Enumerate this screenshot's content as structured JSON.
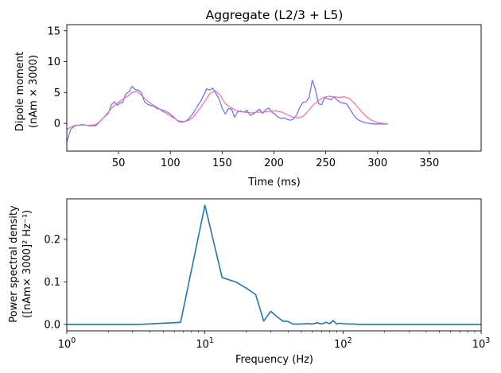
{
  "chart_data": [
    {
      "type": "line",
      "title": "Aggregate (L2/3 + L5)",
      "xlabel": "Time (ms)",
      "ylabel_line1": "Dipole moment",
      "ylabel_line2": "(nAm × 3000)",
      "xlim": [
        0,
        400
      ],
      "ylim": [
        -4.5,
        16
      ],
      "xticks": [
        50,
        100,
        150,
        200,
        250,
        300,
        350
      ],
      "yticks": [
        0,
        5,
        10,
        15
      ],
      "grid": false,
      "series": [
        {
          "color": "#6b6bf5",
          "x": [
            0,
            4,
            8,
            15,
            22,
            28,
            33,
            36,
            40,
            43,
            46,
            49,
            51,
            54,
            57,
            60,
            63,
            66,
            69,
            72,
            75,
            78,
            81,
            84,
            87,
            90,
            93,
            96,
            99,
            102,
            105,
            108,
            111,
            114,
            117,
            120,
            123,
            126,
            129,
            132,
            135,
            138,
            141,
            144,
            147,
            150,
            153,
            156,
            159,
            162,
            165,
            168,
            171,
            174,
            177,
            180,
            183,
            186,
            189,
            192,
            195,
            198,
            201,
            204,
            207,
            210,
            213,
            216,
            219,
            222,
            225,
            228,
            231,
            234,
            237,
            240,
            243,
            246,
            249,
            252,
            255,
            258,
            261,
            264,
            267,
            270,
            273,
            276,
            279,
            282,
            285,
            288,
            292,
            296,
            300,
            305,
            310
          ],
          "y": [
            -3.0,
            -0.9,
            -0.4,
            -0.2,
            -0.4,
            -0.4,
            0.5,
            1.0,
            1.6,
            3.0,
            3.5,
            2.9,
            3.3,
            3.4,
            4.8,
            5.1,
            6.0,
            5.5,
            5.4,
            5.0,
            3.5,
            3.1,
            2.9,
            2.8,
            2.4,
            2.3,
            2.1,
            1.9,
            1.6,
            1.2,
            0.7,
            0.3,
            0.2,
            0.3,
            0.6,
            1.2,
            1.9,
            2.8,
            3.5,
            4.5,
            5.6,
            5.4,
            5.7,
            4.8,
            4.0,
            2.5,
            1.5,
            2.4,
            2.3,
            1.0,
            1.9,
            2.0,
            1.8,
            2.1,
            1.3,
            1.5,
            1.9,
            2.3,
            1.6,
            2.2,
            2.5,
            1.8,
            1.5,
            1.0,
            0.8,
            0.9,
            0.6,
            0.5,
            0.7,
            1.4,
            2.6,
            3.4,
            3.5,
            4.2,
            7.0,
            5.5,
            3.2,
            3.0,
            4.2,
            4.0,
            3.8,
            4.3,
            3.8,
            3.4,
            3.3,
            3.2,
            2.4,
            1.6,
            0.9,
            0.5,
            0.3,
            0.1,
            0.0,
            -0.1,
            -0.1,
            -0.1,
            -0.1
          ]
        },
        {
          "color": "#ee6ea5",
          "x": [
            0,
            4,
            8,
            15,
            22,
            28,
            33,
            38,
            43,
            48,
            53,
            58,
            63,
            68,
            73,
            78,
            83,
            88,
            93,
            98,
            103,
            108,
            113,
            118,
            123,
            128,
            133,
            138,
            143,
            148,
            153,
            158,
            163,
            168,
            173,
            178,
            183,
            188,
            193,
            198,
            203,
            208,
            213,
            218,
            223,
            228,
            233,
            238,
            243,
            248,
            253,
            258,
            263,
            268,
            273,
            278,
            283,
            288,
            293,
            300,
            305,
            310
          ],
          "y": [
            -1.0,
            -0.6,
            -0.3,
            -0.3,
            -0.3,
            -0.2,
            0.5,
            1.4,
            2.4,
            3.2,
            3.8,
            4.3,
            5.0,
            5.2,
            4.4,
            3.6,
            3.0,
            2.5,
            1.9,
            1.4,
            0.9,
            0.4,
            0.3,
            0.5,
            1.2,
            2.3,
            3.5,
            4.8,
            5.3,
            4.6,
            3.2,
            2.6,
            2.1,
            1.9,
            1.8,
            1.7,
            1.8,
            1.8,
            1.9,
            2.0,
            2.0,
            1.8,
            1.4,
            1.0,
            0.9,
            1.1,
            2.0,
            3.0,
            3.7,
            4.2,
            4.4,
            4.3,
            4.2,
            4.3,
            4.0,
            3.2,
            2.2,
            1.3,
            0.6,
            0.1,
            0.0,
            -0.1
          ]
        }
      ]
    },
    {
      "type": "line",
      "xlabel": "Frequency (Hz)",
      "ylabel_line1": "Power spectral density",
      "ylabel_line2": "([nAm× 3000]² Hz⁻¹)",
      "xscale": "log",
      "xlim": [
        1,
        1000
      ],
      "ylim": [
        -0.015,
        0.295
      ],
      "xticks_text": [
        {
          "base": "10",
          "exp": "0"
        },
        {
          "base": "10",
          "exp": "1"
        },
        {
          "base": "10",
          "exp": "2"
        },
        {
          "base": "10",
          "exp": "3"
        }
      ],
      "yticks": [
        0.0,
        0.1,
        0.2
      ],
      "yticks_text": [
        "0.0",
        "0.1",
        "0.2"
      ],
      "grid": false,
      "series": [
        {
          "color": "#1f77b4",
          "x": [
            1,
            2,
            3.33,
            6.67,
            10,
            13.33,
            16.67,
            20,
            23.33,
            26.67,
            30,
            33.33,
            36.67,
            40,
            43.33,
            46.67,
            50,
            55,
            60,
            65,
            70,
            75,
            80,
            85,
            90,
            95,
            100,
            110,
            120,
            130,
            150,
            200,
            300,
            500,
            1000
          ],
          "y": [
            0.0,
            0.0,
            0.0,
            0.005,
            0.28,
            0.11,
            0.1,
            0.085,
            0.07,
            0.008,
            0.031,
            0.018,
            0.008,
            0.007,
            0.001,
            0.001,
            0.001,
            0.002,
            0.001,
            0.004,
            0.001,
            0.005,
            0.002,
            0.009,
            0.001,
            0.003,
            0.002,
            0.001,
            0.001,
            0.0,
            0.0,
            0.0,
            0.0,
            0.0,
            0.0
          ]
        }
      ]
    }
  ]
}
